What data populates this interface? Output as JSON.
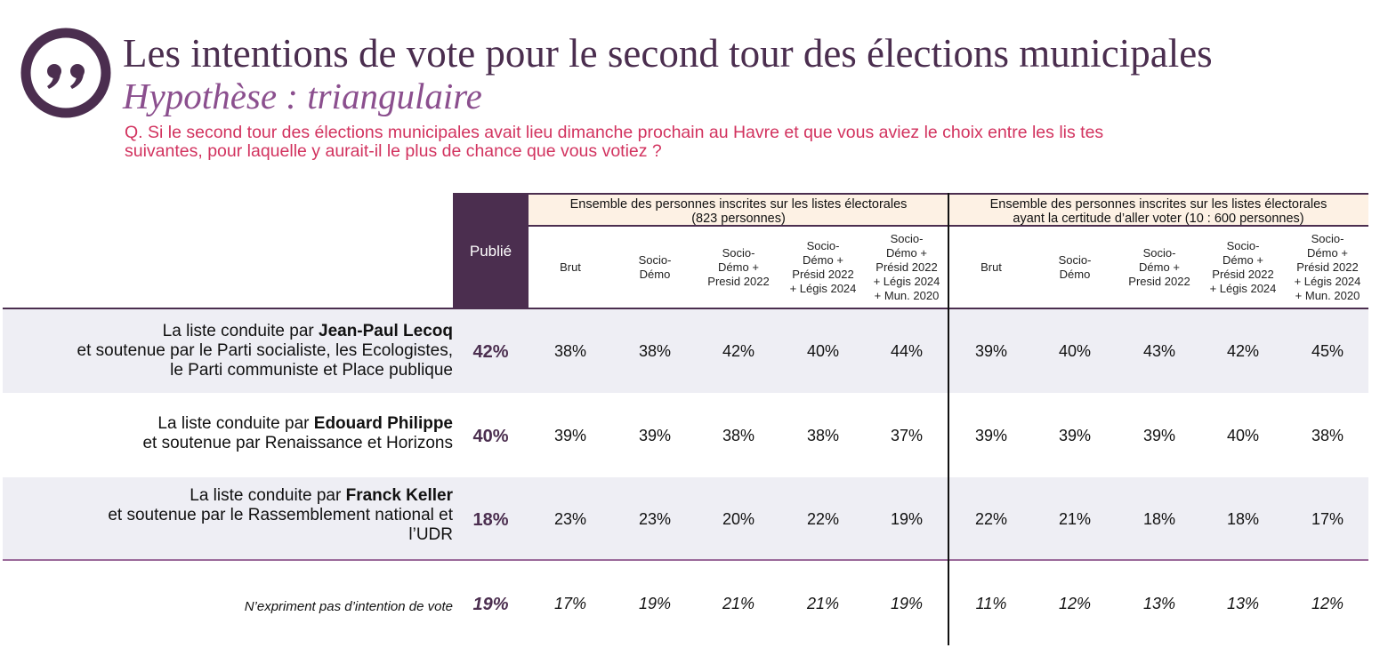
{
  "header": {
    "icon": "quote-icon",
    "title": "Les intentions de vote pour le second tour des élections municipales",
    "subtitle": "Hypothèse : triangulaire",
    "question_line1": "Q. Si le second tour des élections municipales avait lieu dimanche prochain au Havre et que vous aviez le choix entre les lis tes",
    "question_line2": "suivantes, pour laquelle y aurait-il le plus de chance que vous votiez ?"
  },
  "colors": {
    "brand_purple": "#4b2e4f",
    "subtitle_purple": "#8b4f8e",
    "question_red": "#d2335f",
    "group_header_bg": "#fdf1e4",
    "row_shade": "#eeeef4",
    "separator": "#9b6a9a"
  },
  "chart_data": {
    "type": "table",
    "title": "Les intentions de vote pour le second tour des élections municipales",
    "subtitle": "Hypothèse : triangulaire",
    "published_header": "Publié",
    "groups": [
      {
        "label_line1": "Ensemble des personnes inscrites sur les listes électorales",
        "label_line2": "(823 personnes)",
        "columns": [
          {
            "lines": [
              "Brut"
            ]
          },
          {
            "lines": [
              "Socio-",
              "Démo"
            ]
          },
          {
            "lines": [
              "Socio-",
              "Démo +",
              "Presid 2022"
            ]
          },
          {
            "lines": [
              "Socio-",
              "Démo +",
              "Présid 2022",
              "+ Légis 2024"
            ]
          },
          {
            "lines": [
              "Socio-",
              "Démo +",
              "Présid 2022",
              "+ Légis 2024",
              "+ Mun. 2020"
            ]
          }
        ]
      },
      {
        "label_line1": "Ensemble des personnes inscrites sur les listes électorales",
        "label_line2": "ayant la certitude d’aller voter (10 : 600 personnes)",
        "columns": [
          {
            "lines": [
              "Brut"
            ]
          },
          {
            "lines": [
              "Socio-",
              "Démo"
            ]
          },
          {
            "lines": [
              "Socio-",
              "Démo +",
              "Presid 2022"
            ]
          },
          {
            "lines": [
              "Socio-",
              "Démo +",
              "Présid 2022",
              "+ Légis 2024"
            ]
          },
          {
            "lines": [
              "Socio-",
              "Démo +",
              "Présid 2022",
              "+ Légis 2024",
              "+ Mun. 2020"
            ]
          }
        ]
      }
    ],
    "rows": [
      {
        "label_prefix": "La liste conduite par ",
        "label_name": "Jean-Paul Lecoq",
        "label_rest": [
          "et soutenue par le Parti socialiste, les Ecologistes,",
          "le Parti communiste et Place publique"
        ],
        "published": "42%",
        "values": [
          "38%",
          "38%",
          "42%",
          "40%",
          "44%",
          "39%",
          "40%",
          "43%",
          "42%",
          "45%"
        ]
      },
      {
        "label_prefix": "La liste conduite par ",
        "label_name": "Edouard Philippe",
        "label_rest": [
          "et soutenue par Renaissance et Horizons"
        ],
        "published": "40%",
        "values": [
          "39%",
          "39%",
          "38%",
          "38%",
          "37%",
          "39%",
          "39%",
          "39%",
          "40%",
          "38%"
        ]
      },
      {
        "label_prefix": "La liste conduite par ",
        "label_name": "Franck Keller",
        "label_rest": [
          "et soutenue par le Rassemblement national et",
          "l’UDR"
        ],
        "published": "18%",
        "values": [
          "23%",
          "23%",
          "20%",
          "22%",
          "19%",
          "22%",
          "21%",
          "18%",
          "18%",
          "17%"
        ]
      }
    ],
    "no_intention": {
      "label": "N’expriment pas d’intention de vote",
      "published": "19%",
      "values": [
        "17%",
        "19%",
        "21%",
        "21%",
        "19%",
        "11%",
        "12%",
        "13%",
        "13%",
        "12%"
      ]
    }
  }
}
